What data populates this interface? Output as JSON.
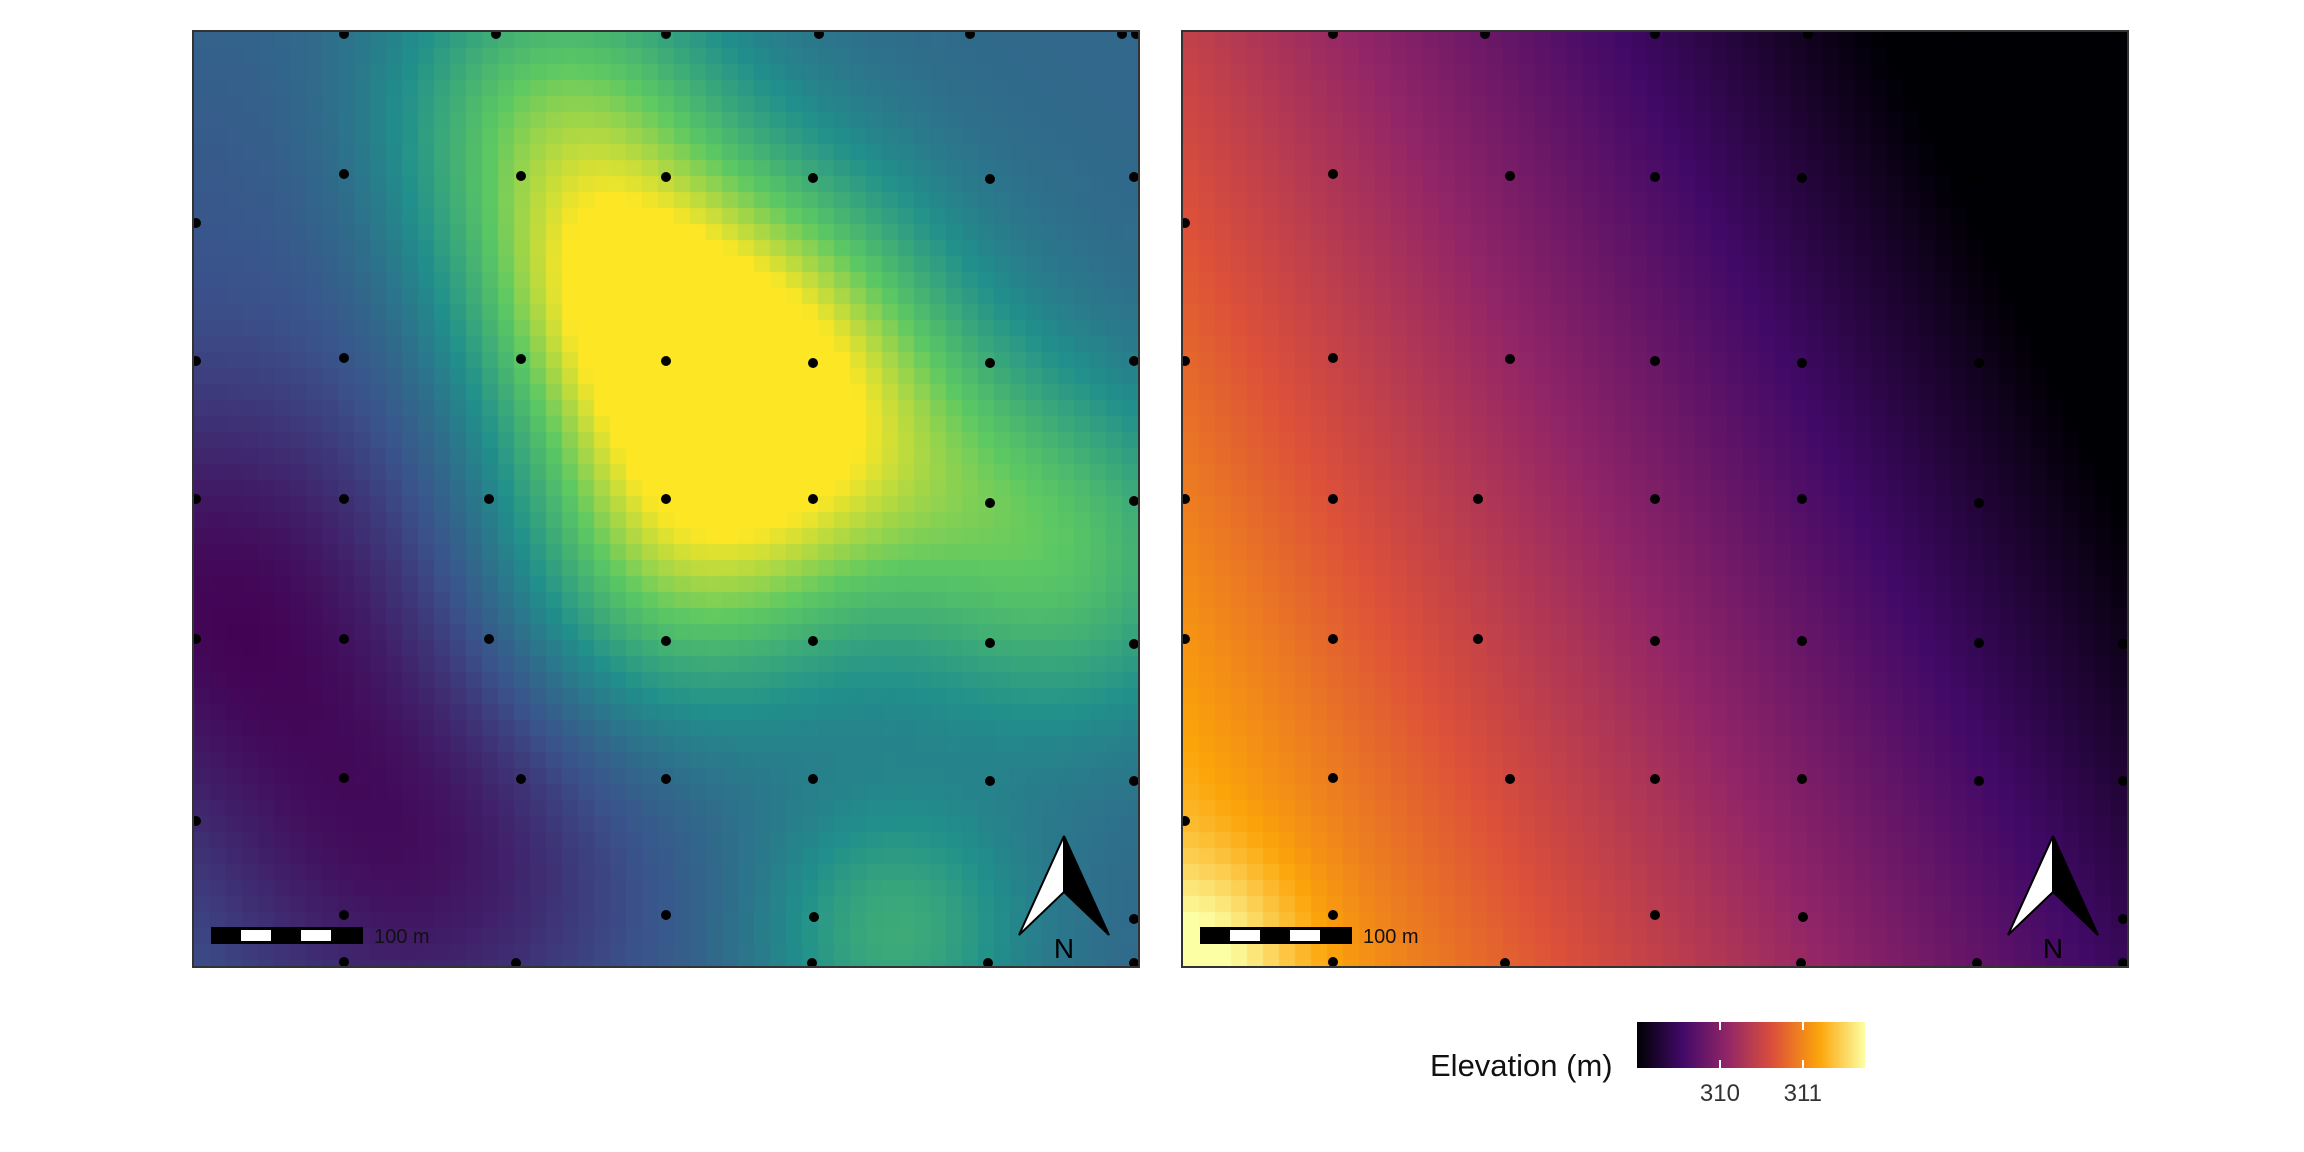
{
  "panels": [
    {
      "id": "left",
      "palette": "viridis",
      "scale_bar_label": "100 m",
      "north_arrow_label": "N"
    },
    {
      "id": "right",
      "palette": "inferno",
      "scale_bar_label": "100 m",
      "north_arrow_label": "N"
    }
  ],
  "legend": {
    "title": "Elevation (m)",
    "ticks": [
      {
        "label": "310",
        "value": 310
      },
      {
        "label": "311",
        "value": 311
      }
    ],
    "range": [
      309.0,
      311.75
    ],
    "palette": "inferno"
  },
  "colors": {
    "viridis": [
      "#440154",
      "#3b528b",
      "#21908c",
      "#5dc963",
      "#fde725"
    ],
    "inferno": [
      "#000004",
      "#420a68",
      "#932667",
      "#dd513a",
      "#fca50a",
      "#fcffa4"
    ],
    "point": "#000000",
    "frame": "#333333"
  }
}
